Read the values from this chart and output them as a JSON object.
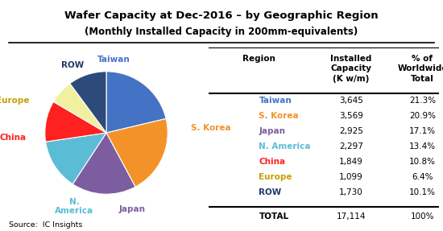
{
  "title_line1": "Wafer Capacity at Dec-2016 – by Geographic Region",
  "title_line2": "(Monthly Installed Capacity in 200mm-equivalents)",
  "source": "Source:  IC Insights",
  "regions": [
    "Taiwan",
    "S. Korea",
    "Japan",
    "N. America",
    "China",
    "Europe",
    "ROW"
  ],
  "values": [
    3645,
    3569,
    2925,
    2297,
    1849,
    1099,
    1730
  ],
  "percentages": [
    "21.3%",
    "20.9%",
    "17.1%",
    "13.4%",
    "10.8%",
    "6.4%",
    "10.1%"
  ],
  "pie_colors": [
    "#4472C4",
    "#F4922A",
    "#7C5EA0",
    "#5BBCD6",
    "#FF2020",
    "#F0F0A0",
    "#2E4A7A"
  ],
  "label_colors": [
    "#4472C4",
    "#F4922A",
    "#7C5EA0",
    "#5BBCD6",
    "#FF2020",
    "#C8A000",
    "#1F3A6B"
  ],
  "table_region_colors": [
    "#4472C4",
    "#F4922A",
    "#7C5EA0",
    "#5BBCD6",
    "#FF2020",
    "#C8A000",
    "#1F3A6B"
  ],
  "total_value": "17,114",
  "total_pct": "100%",
  "formatted_values": [
    "3,645",
    "3,569",
    "2,925",
    "2,297",
    "1,849",
    "1,099",
    "1,730"
  ]
}
